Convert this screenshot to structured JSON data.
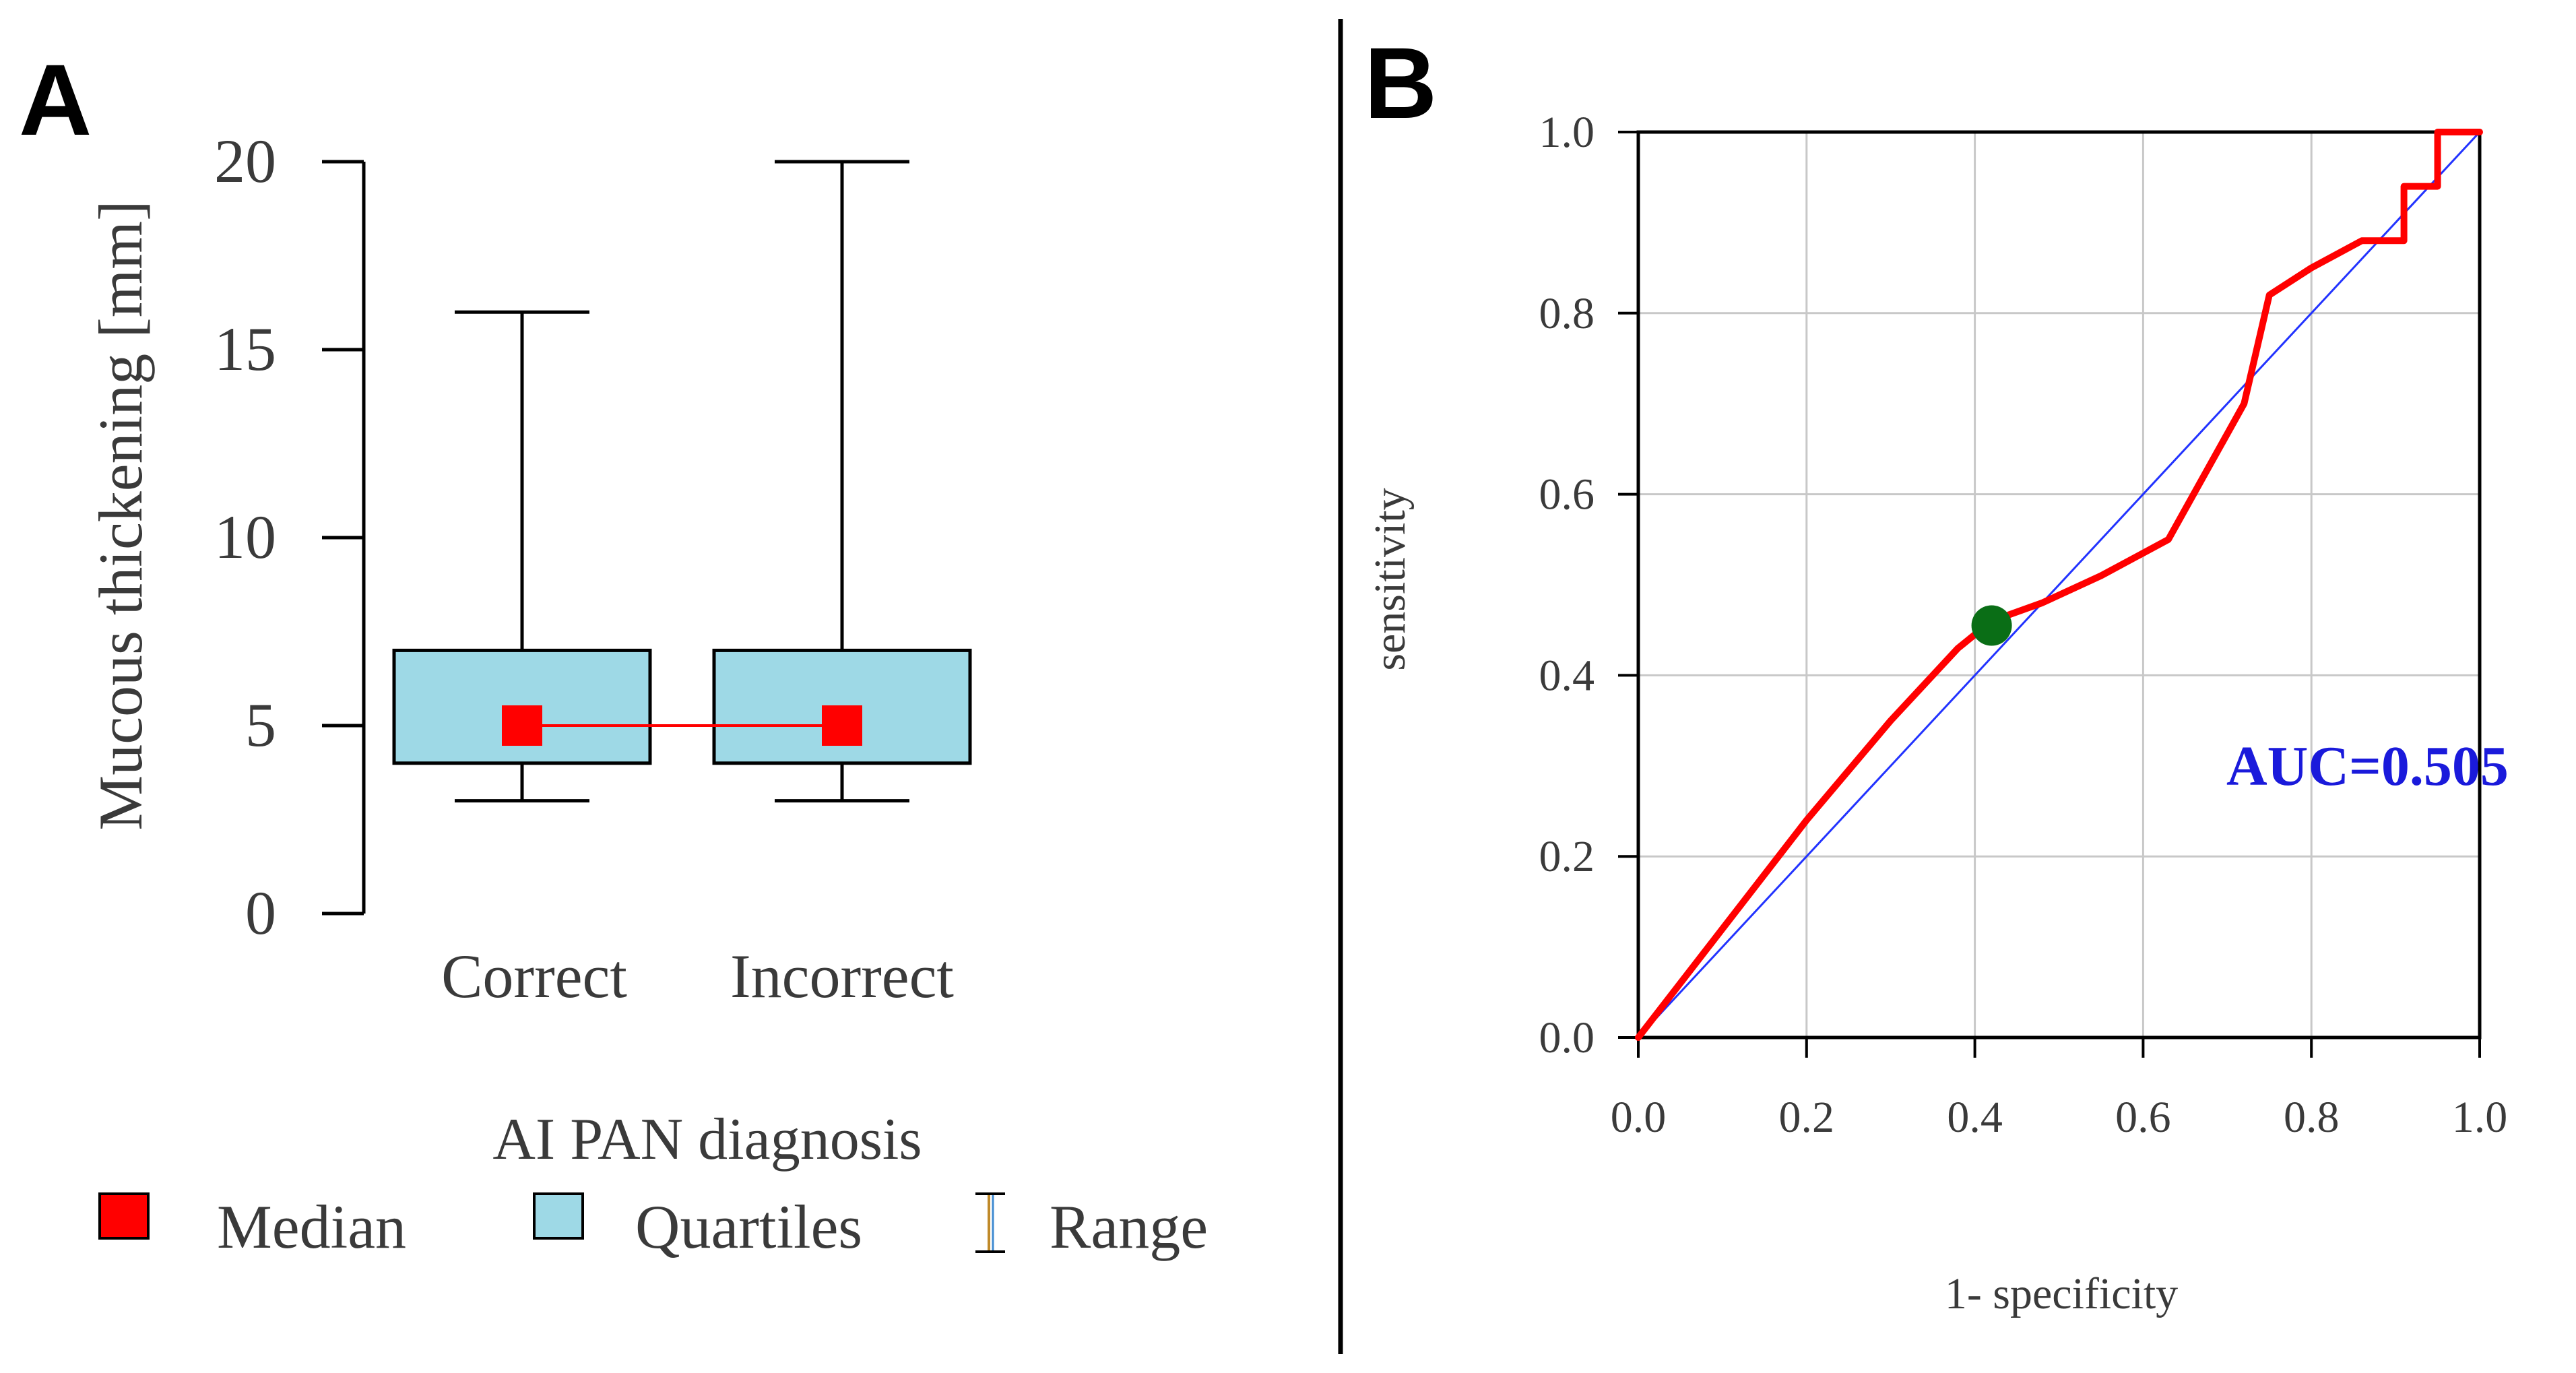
{
  "panels": {
    "a_label": "A",
    "b_label": "B"
  },
  "colors": {
    "box_fill": "#9ed9e6",
    "median": "#ff0000",
    "roc_curve": "#ff0000",
    "diagonal": "#2233ff",
    "cutoff_point": "#0a6e16",
    "auc_text": "#1a1adb",
    "grid": "#c8c8c8"
  },
  "chart_data": [
    {
      "type": "box",
      "ylabel": "Mucous thickening [mm]",
      "xlabel": "AI PAN diagnosis",
      "ylim": [
        0,
        20
      ],
      "yticks": [
        "0",
        "5",
        "10",
        "15",
        "20"
      ],
      "categories": [
        "Correct",
        "Incorrect"
      ],
      "boxes": [
        {
          "category": "Correct",
          "min": 3,
          "q1": 4,
          "median": 5,
          "q3": 7,
          "max": 16
        },
        {
          "category": "Incorrect",
          "min": 3,
          "q1": 4,
          "median": 5,
          "q3": 7,
          "max": 20
        }
      ],
      "legend": {
        "placement": "bottom",
        "items": [
          "Median",
          "Quartiles",
          "Range"
        ]
      }
    },
    {
      "type": "line",
      "xlabel": "1- specificity",
      "ylabel": "sensitivity",
      "xlim": [
        0,
        1
      ],
      "ylim": [
        0,
        1
      ],
      "xticks": [
        "0.0",
        "0.2",
        "0.4",
        "0.6",
        "0.8",
        "1.0"
      ],
      "yticks": [
        "0.0",
        "0.2",
        "0.4",
        "0.6",
        "0.8",
        "1.0"
      ],
      "grid": true,
      "roc_curve": [
        [
          0.0,
          0.0
        ],
        [
          0.1,
          0.12
        ],
        [
          0.2,
          0.24
        ],
        [
          0.3,
          0.35
        ],
        [
          0.38,
          0.43
        ],
        [
          0.42,
          0.46
        ],
        [
          0.48,
          0.48
        ],
        [
          0.55,
          0.51
        ],
        [
          0.63,
          0.55
        ],
        [
          0.72,
          0.7
        ],
        [
          0.75,
          0.82
        ],
        [
          0.8,
          0.85
        ],
        [
          0.86,
          0.88
        ],
        [
          0.91,
          0.88
        ],
        [
          0.91,
          0.94
        ],
        [
          0.95,
          0.94
        ],
        [
          0.95,
          1.0
        ],
        [
          1.0,
          1.0
        ]
      ],
      "reference_line": [
        [
          0,
          0
        ],
        [
          1,
          1
        ]
      ],
      "cutoff_point": [
        0.42,
        0.455
      ],
      "annotation": "AUC=0.505"
    }
  ]
}
